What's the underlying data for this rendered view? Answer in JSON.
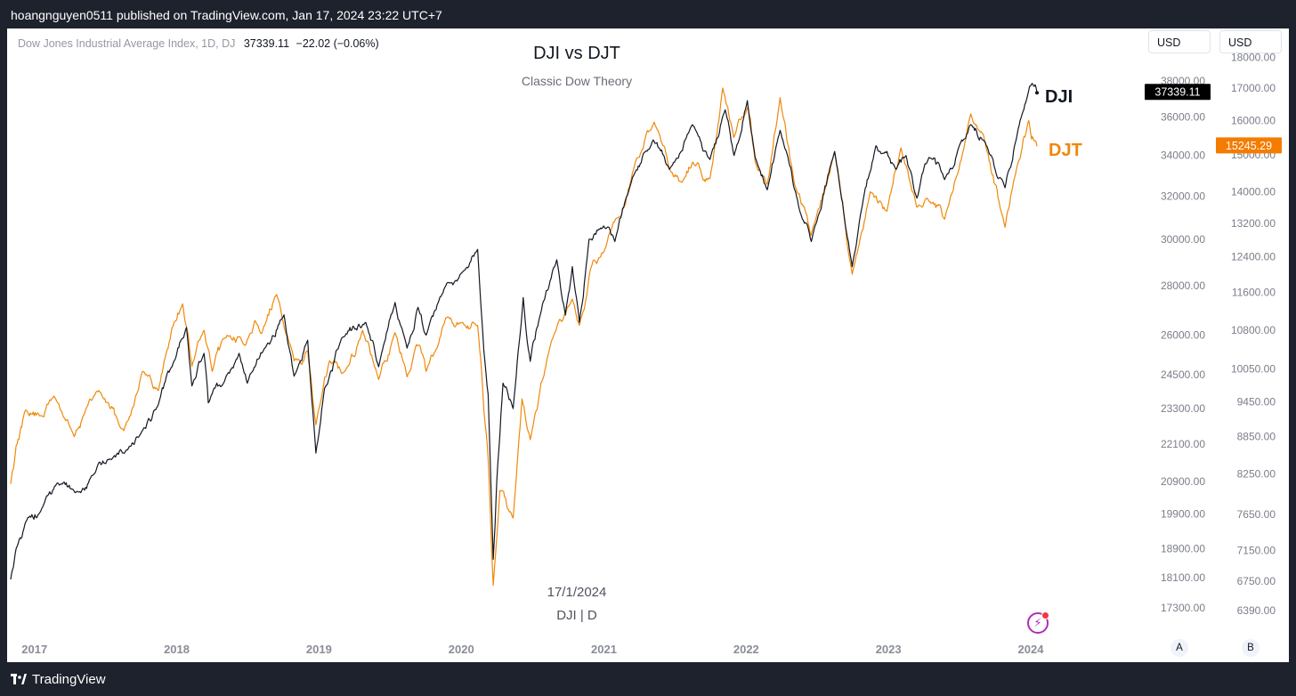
{
  "header": {
    "credit": "hoangnguyen0511 published on TradingView.com, Jan 17, 2024 23:22 UTC+7"
  },
  "symbol_info": {
    "name": "Dow Jones Industrial Average Index, 1D, DJ",
    "last": "37339.11",
    "change": "−22.02 (−0.06%)"
  },
  "currency_buttons": [
    "USD",
    "USD"
  ],
  "watermark": {
    "date": "17/1/2024",
    "symbol": "DJI | D"
  },
  "scale_buttons": [
    "A",
    "B"
  ],
  "footer": {
    "brand": "TradingView"
  },
  "icons": [
    "tradingview-logo-icon",
    "lightning-icon"
  ],
  "colors": {
    "dji": "#131722",
    "djt": "#f0880a",
    "dji_label_bg": "#000000",
    "djt_label_bg": "#f57c00",
    "background": "#ffffff",
    "frame": "#1e222d"
  },
  "chart_data": {
    "type": "line",
    "title": "DJI vs DJT",
    "subtitle": "Classic Dow Theory",
    "scale": "log",
    "grid": false,
    "x_ticks": [
      {
        "date": "2017-01-01",
        "label": "2017"
      },
      {
        "date": "2018-01-01",
        "label": "2018"
      },
      {
        "date": "2019-01-01",
        "label": "2019"
      },
      {
        "date": "2020-01-01",
        "label": "2020"
      },
      {
        "date": "2021-01-01",
        "label": "2021"
      },
      {
        "date": "2022-01-01",
        "label": "2022"
      },
      {
        "date": "2023-01-01",
        "label": "2023"
      },
      {
        "date": "2024-01-01",
        "label": "2024"
      }
    ],
    "left_axis": {
      "series": "DJI",
      "ticks": [
        "17300.00",
        "18100.00",
        "18900.00",
        "19900.00",
        "20900.00",
        "22100.00",
        "23300.00",
        "24500.00",
        "26000.00",
        "28000.00",
        "30000.00",
        "32000.00",
        "34000.00",
        "36000.00",
        "38000.00"
      ],
      "last_value": "37339.11"
    },
    "right_axis": {
      "series": "DJT",
      "ticks": [
        "6390.00",
        "6750.00",
        "7150.00",
        "7650.00",
        "8250.00",
        "8850.00",
        "9450.00",
        "10050.00",
        "10800.00",
        "11600.00",
        "12400.00",
        "13200.00",
        "14000.00",
        "15000.00",
        "16000.00",
        "17000.00",
        "18000.00"
      ],
      "last_value": "15245.29"
    },
    "series": [
      {
        "name": "DJI",
        "color": "#131722",
        "points": [
          [
            "2016-11-01",
            18050
          ],
          [
            "2016-11-15",
            18900
          ],
          [
            "2016-12-15",
            19800
          ],
          [
            "2017-01-15",
            19950
          ],
          [
            "2017-03-01",
            20850
          ],
          [
            "2017-04-15",
            20550
          ],
          [
            "2017-06-01",
            21100
          ],
          [
            "2017-07-15",
            21600
          ],
          [
            "2017-08-20",
            21800
          ],
          [
            "2017-10-01",
            22450
          ],
          [
            "2017-11-15",
            23450
          ],
          [
            "2017-12-20",
            24800
          ],
          [
            "2018-01-26",
            26300
          ],
          [
            "2018-02-09",
            24100
          ],
          [
            "2018-03-12",
            25300
          ],
          [
            "2018-03-23",
            23500
          ],
          [
            "2018-05-01",
            24200
          ],
          [
            "2018-06-10",
            25300
          ],
          [
            "2018-07-01",
            24200
          ],
          [
            "2018-08-15",
            25500
          ],
          [
            "2018-10-03",
            26800
          ],
          [
            "2018-10-29",
            24450
          ],
          [
            "2018-12-03",
            25800
          ],
          [
            "2018-12-24",
            21800
          ],
          [
            "2019-01-15",
            24000
          ],
          [
            "2019-03-01",
            25900
          ],
          [
            "2019-05-01",
            26500
          ],
          [
            "2019-06-03",
            24800
          ],
          [
            "2019-07-15",
            27300
          ],
          [
            "2019-08-15",
            25500
          ],
          [
            "2019-09-12",
            27100
          ],
          [
            "2019-10-03",
            26000
          ],
          [
            "2019-11-25",
            28100
          ],
          [
            "2019-12-31",
            28500
          ],
          [
            "2020-02-12",
            29550
          ],
          [
            "2020-02-28",
            25400
          ],
          [
            "2020-03-10",
            23800
          ],
          [
            "2020-03-23",
            18600
          ],
          [
            "2020-04-01",
            20900
          ],
          [
            "2020-04-17",
            24200
          ],
          [
            "2020-05-13",
            23300
          ],
          [
            "2020-06-08",
            27500
          ],
          [
            "2020-06-26",
            25000
          ],
          [
            "2020-07-20",
            26700
          ],
          [
            "2020-09-02",
            29100
          ],
          [
            "2020-09-24",
            26800
          ],
          [
            "2020-10-12",
            28800
          ],
          [
            "2020-10-30",
            26500
          ],
          [
            "2020-11-24",
            30000
          ],
          [
            "2020-12-31",
            30600
          ],
          [
            "2021-01-29",
            29900
          ],
          [
            "2021-03-15",
            32900
          ],
          [
            "2021-05-07",
            34800
          ],
          [
            "2021-06-18",
            33300
          ],
          [
            "2021-08-16",
            35600
          ],
          [
            "2021-09-30",
            33800
          ],
          [
            "2021-11-08",
            36400
          ],
          [
            "2021-12-01",
            34000
          ],
          [
            "2022-01-04",
            36900
          ],
          [
            "2022-01-24",
            33900
          ],
          [
            "2022-02-24",
            32300
          ],
          [
            "2022-03-29",
            35300
          ],
          [
            "2022-05-20",
            31200
          ],
          [
            "2022-06-17",
            29900
          ],
          [
            "2022-08-16",
            34200
          ],
          [
            "2022-09-30",
            28800
          ],
          [
            "2022-10-21",
            31100
          ],
          [
            "2022-11-30",
            34500
          ],
          [
            "2022-12-13",
            34100
          ],
          [
            "2023-01-20",
            33300
          ],
          [
            "2023-02-15",
            34000
          ],
          [
            "2023-03-15",
            31900
          ],
          [
            "2023-04-15",
            33900
          ],
          [
            "2023-05-25",
            32800
          ],
          [
            "2023-06-30",
            34400
          ],
          [
            "2023-07-31",
            35600
          ],
          [
            "2023-09-01",
            34800
          ],
          [
            "2023-10-27",
            32400
          ],
          [
            "2023-11-30",
            35400
          ],
          [
            "2023-12-29",
            37700
          ],
          [
            "2024-01-10",
            37700
          ],
          [
            "2024-01-17",
            37339
          ]
        ]
      },
      {
        "name": "DJT",
        "color": "#f0880a",
        "points": [
          [
            "2016-11-01",
            8100
          ],
          [
            "2016-11-15",
            8700
          ],
          [
            "2016-12-09",
            9300
          ],
          [
            "2017-01-15",
            9200
          ],
          [
            "2017-02-20",
            9550
          ],
          [
            "2017-04-13",
            8850
          ],
          [
            "2017-05-15",
            9350
          ],
          [
            "2017-06-15",
            9650
          ],
          [
            "2017-08-18",
            8950
          ],
          [
            "2017-10-05",
            10000
          ],
          [
            "2017-11-15",
            9650
          ],
          [
            "2017-12-20",
            10850
          ],
          [
            "2018-01-16",
            11350
          ],
          [
            "2018-02-09",
            10100
          ],
          [
            "2018-03-12",
            10800
          ],
          [
            "2018-04-02",
            10000
          ],
          [
            "2018-05-10",
            10700
          ],
          [
            "2018-06-26",
            10500
          ],
          [
            "2018-07-20",
            11000
          ],
          [
            "2018-08-15",
            10900
          ],
          [
            "2018-09-14",
            11550
          ],
          [
            "2018-10-29",
            10200
          ],
          [
            "2018-12-03",
            10400
          ],
          [
            "2018-12-24",
            9050
          ],
          [
            "2019-01-28",
            10200
          ],
          [
            "2019-03-08",
            10000
          ],
          [
            "2019-04-23",
            10800
          ],
          [
            "2019-06-03",
            9850
          ],
          [
            "2019-07-15",
            10750
          ],
          [
            "2019-08-15",
            9900
          ],
          [
            "2019-09-16",
            10500
          ],
          [
            "2019-10-03",
            10000
          ],
          [
            "2019-11-22",
            11050
          ],
          [
            "2019-12-31",
            10950
          ],
          [
            "2020-02-12",
            10900
          ],
          [
            "2020-02-28",
            9300
          ],
          [
            "2020-03-10",
            8500
          ],
          [
            "2020-03-23",
            6700
          ],
          [
            "2020-04-09",
            8000
          ],
          [
            "2020-05-13",
            7600
          ],
          [
            "2020-06-05",
            9500
          ],
          [
            "2020-06-26",
            8800
          ],
          [
            "2020-08-20",
            10600
          ],
          [
            "2020-10-12",
            11450
          ],
          [
            "2020-10-30",
            10900
          ],
          [
            "2020-12-04",
            12300
          ],
          [
            "2020-12-31",
            12500
          ],
          [
            "2021-02-15",
            13400
          ],
          [
            "2021-03-15",
            14500
          ],
          [
            "2021-05-10",
            15950
          ],
          [
            "2021-06-18",
            14600
          ],
          [
            "2021-07-20",
            14250
          ],
          [
            "2021-08-17",
            14800
          ],
          [
            "2021-09-30",
            14350
          ],
          [
            "2021-11-02",
            17000
          ],
          [
            "2021-11-30",
            15500
          ],
          [
            "2022-01-05",
            16400
          ],
          [
            "2022-01-24",
            14800
          ],
          [
            "2022-02-24",
            14200
          ],
          [
            "2022-03-29",
            16700
          ],
          [
            "2022-05-05",
            14200
          ],
          [
            "2022-06-16",
            12900
          ],
          [
            "2022-08-16",
            15100
          ],
          [
            "2022-09-30",
            12000
          ],
          [
            "2022-11-15",
            14000
          ],
          [
            "2022-12-28",
            13500
          ],
          [
            "2023-02-02",
            15200
          ],
          [
            "2023-03-15",
            13600
          ],
          [
            "2023-04-20",
            13700
          ],
          [
            "2023-05-25",
            13300
          ],
          [
            "2023-07-31",
            16200
          ],
          [
            "2023-09-01",
            15600
          ],
          [
            "2023-10-27",
            13100
          ],
          [
            "2023-11-30",
            14800
          ],
          [
            "2023-12-27",
            16000
          ],
          [
            "2024-01-10",
            15400
          ],
          [
            "2024-01-17",
            15245
          ]
        ]
      }
    ],
    "series_labels": [
      {
        "series": "DJI",
        "text": "DJI"
      },
      {
        "series": "DJT",
        "text": "DJT"
      }
    ]
  }
}
